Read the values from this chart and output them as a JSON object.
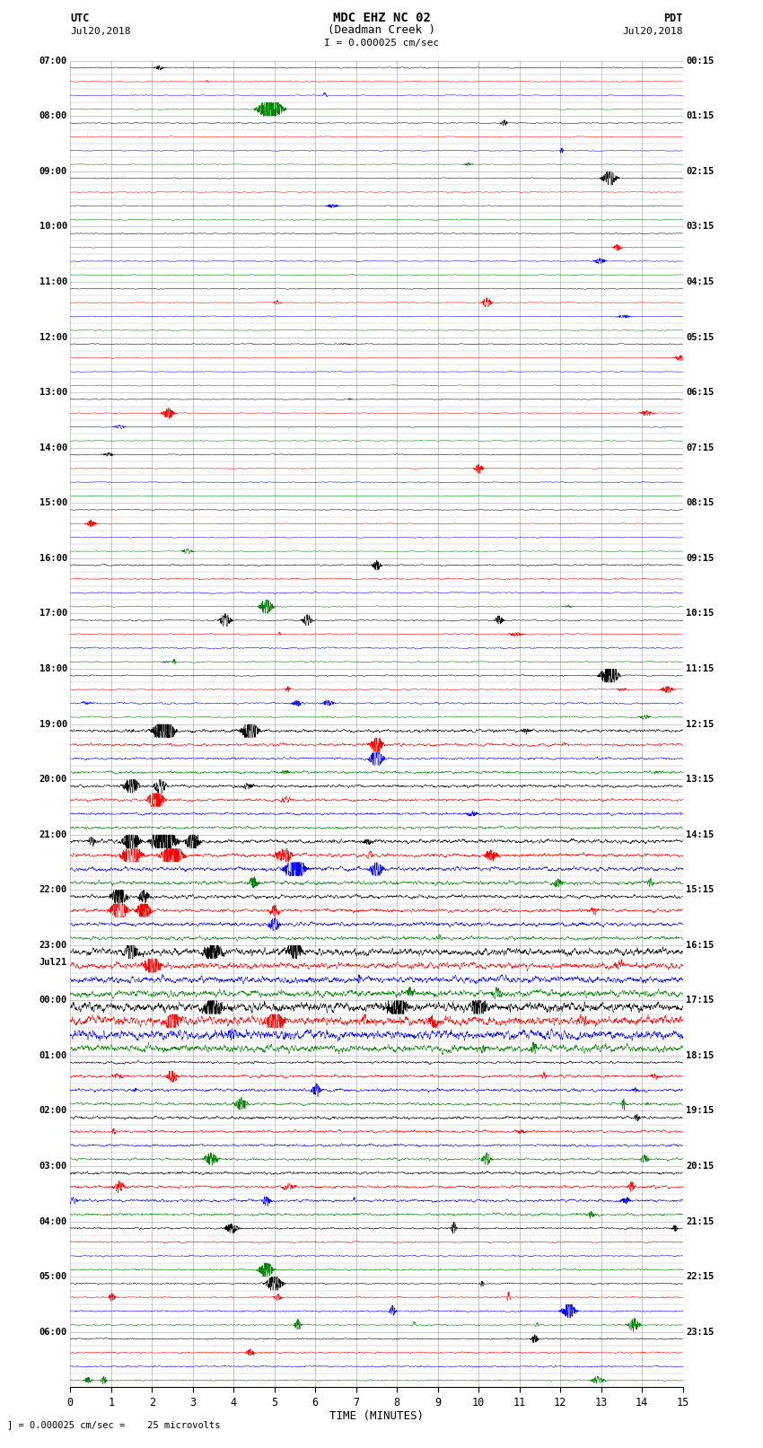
{
  "title_line1": "MDC EHZ NC 02",
  "title_line2": "(Deadman Creek )",
  "title_scale": "I = 0.000025 cm/sec",
  "utc_label": "UTC",
  "utc_date": "Jul20,2018",
  "pdt_label": "PDT",
  "pdt_date": "Jul20,2018",
  "xlabel": "TIME (MINUTES)",
  "footer": "= 0.000025 cm/sec =    25 microvolts",
  "xmin": 0,
  "xmax": 15,
  "bg_color": "#ffffff",
  "trace_colors": [
    "black",
    "red",
    "blue",
    "green"
  ],
  "grid_color": "#888888",
  "num_rows": 96,
  "left_labels_hours": [
    "07:00",
    "08:00",
    "09:00",
    "10:00",
    "11:00",
    "12:00",
    "13:00",
    "14:00",
    "15:00",
    "16:00",
    "17:00",
    "18:00",
    "19:00",
    "20:00",
    "21:00",
    "22:00",
    "23:00",
    "00:00",
    "01:00",
    "02:00",
    "03:00",
    "04:00",
    "05:00",
    "06:00"
  ],
  "right_labels_hours": [
    "00:15",
    "01:15",
    "02:15",
    "03:15",
    "04:15",
    "05:15",
    "06:15",
    "07:15",
    "08:15",
    "09:15",
    "10:15",
    "11:15",
    "12:15",
    "13:15",
    "14:15",
    "15:15",
    "16:15",
    "17:15",
    "18:15",
    "19:15",
    "20:15",
    "21:15",
    "22:15",
    "23:15"
  ],
  "jul21_row": 68
}
